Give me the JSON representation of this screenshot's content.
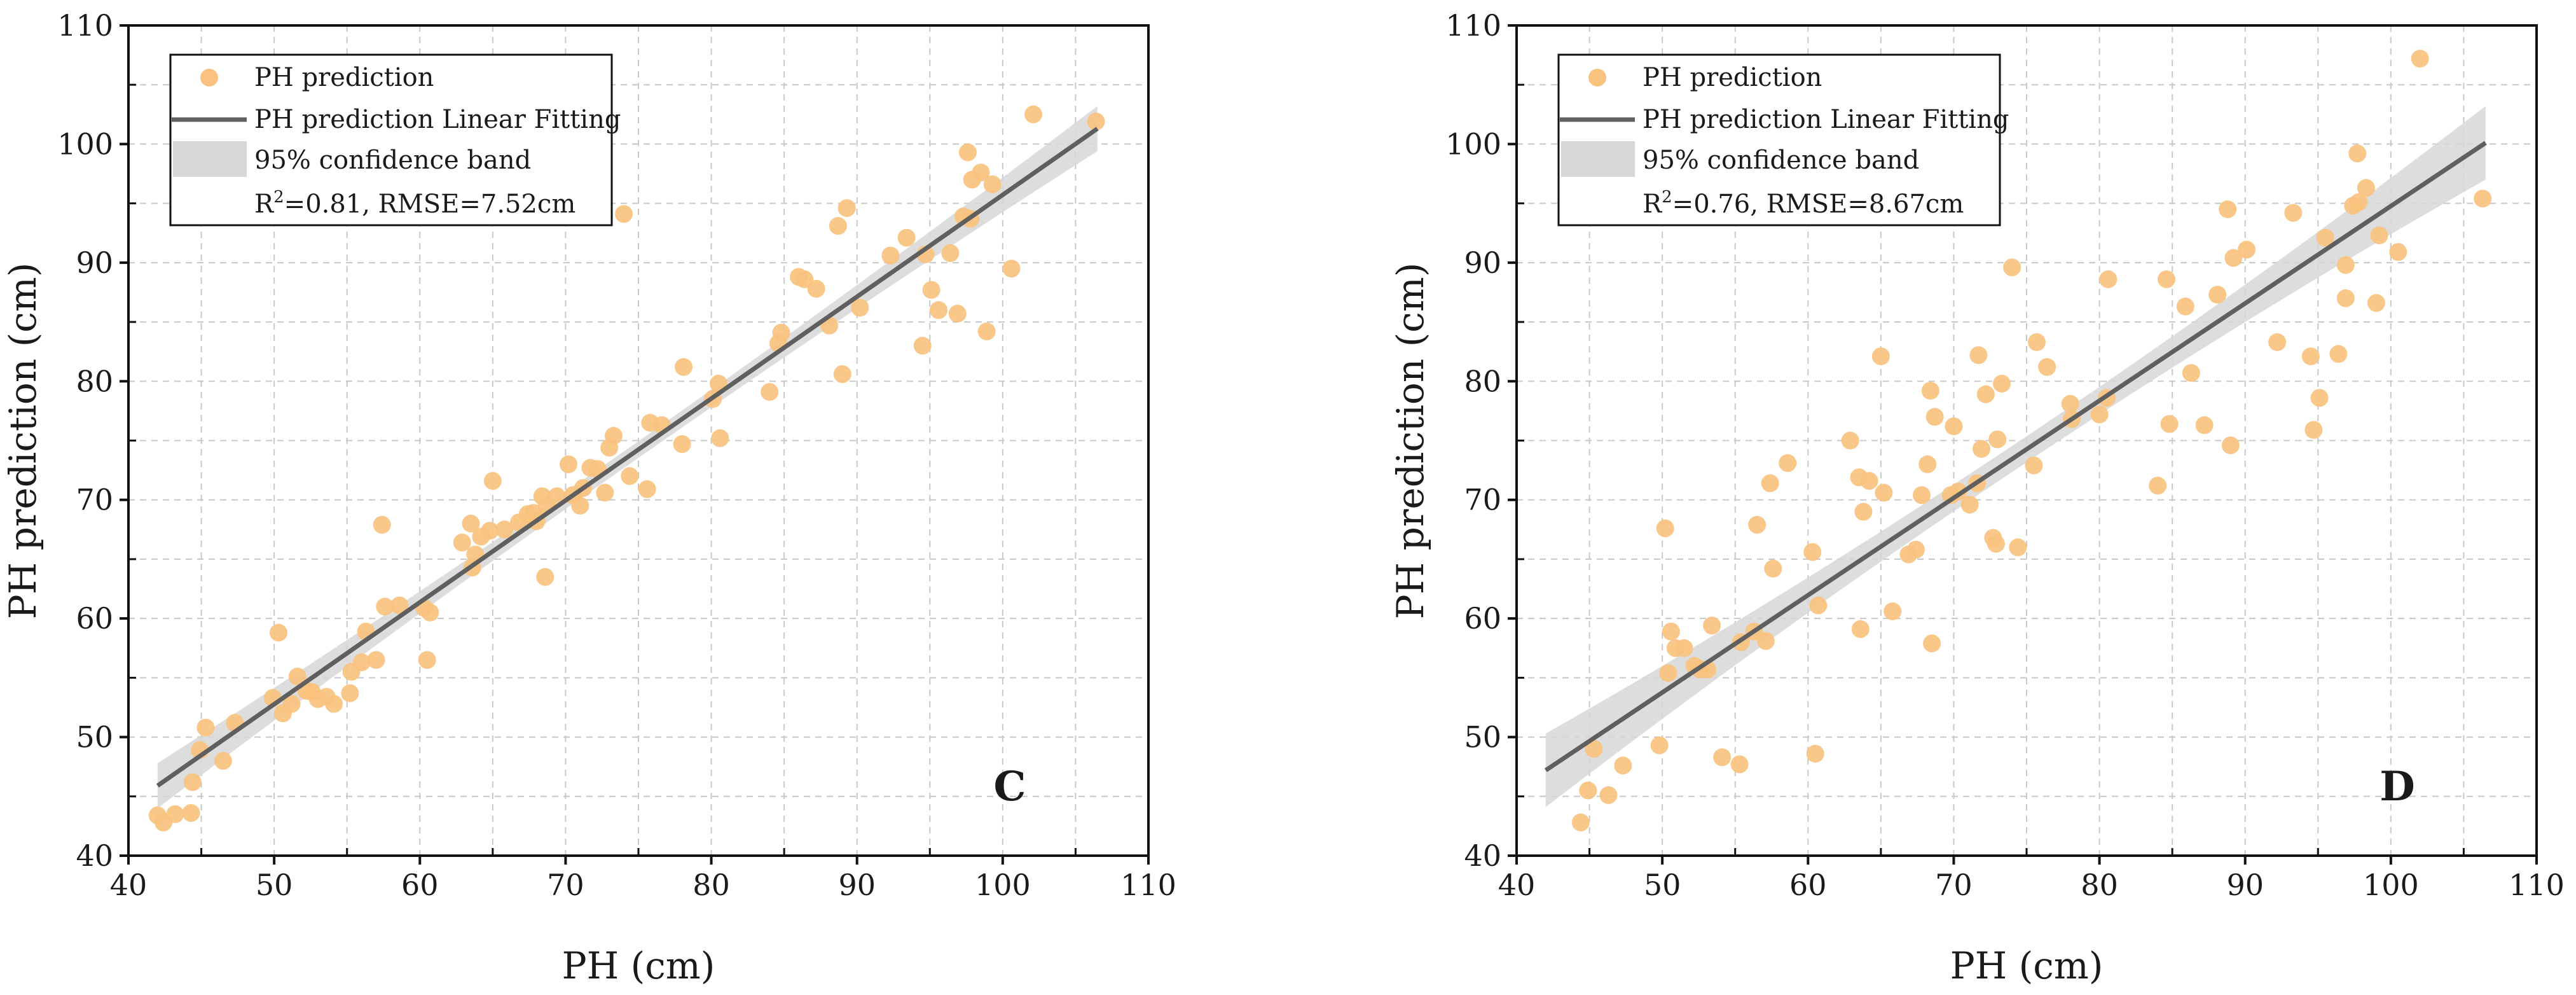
{
  "chart_data": [
    {
      "type": "scatter",
      "panel": "C",
      "xlabel": "PH (cm)",
      "ylabel": "PH prediction (cm)",
      "xlim": [
        40,
        110
      ],
      "ylim": [
        40,
        110
      ],
      "xticks": [
        40,
        50,
        60,
        70,
        80,
        90,
        100,
        110
      ],
      "yticks": [
        40,
        50,
        60,
        70,
        80,
        90,
        100,
        110
      ],
      "legend": {
        "placement": "top-left",
        "scatter_label": "PH prediction",
        "fit_label": "PH prediction Linear Fitting",
        "band_label": "95% confidence band",
        "stats_r2": "=0.81, RMSE=7.52cm"
      },
      "fit": {
        "x0": 42,
        "y0": 45.9,
        "x1": 106.5,
        "y1": 101.3
      },
      "band_half_width": {
        "ends": 1.9,
        "center": 0.7
      },
      "points": [
        [
          42,
          43.4
        ],
        [
          42.4,
          42.8
        ],
        [
          43.2,
          43.5
        ],
        [
          44.3,
          43.6
        ],
        [
          44.4,
          46.2
        ],
        [
          44.9,
          48.9
        ],
        [
          45.3,
          50.8
        ],
        [
          46.5,
          48
        ],
        [
          47.3,
          51.2
        ],
        [
          49.9,
          53.3
        ],
        [
          50.3,
          58.8
        ],
        [
          50.6,
          52
        ],
        [
          51.2,
          52.8
        ],
        [
          51.6,
          55.1
        ],
        [
          52.2,
          53.9
        ],
        [
          52.6,
          53.8
        ],
        [
          53,
          53.2
        ],
        [
          53.6,
          53.4
        ],
        [
          54.1,
          52.8
        ],
        [
          55.2,
          53.7
        ],
        [
          55.3,
          55.5
        ],
        [
          56,
          56.3
        ],
        [
          56.3,
          58.9
        ],
        [
          57,
          56.5
        ],
        [
          57.4,
          67.9
        ],
        [
          57.6,
          61
        ],
        [
          58.6,
          61.1
        ],
        [
          60.3,
          60.9
        ],
        [
          60.5,
          56.5
        ],
        [
          60.7,
          60.5
        ],
        [
          62.9,
          66.4
        ],
        [
          63.5,
          68
        ],
        [
          63.6,
          64.3
        ],
        [
          63.8,
          65.4
        ],
        [
          64.2,
          66.9
        ],
        [
          65,
          71.6
        ],
        [
          64.8,
          67.4
        ],
        [
          65.8,
          67.5
        ],
        [
          66.8,
          68.1
        ],
        [
          67.4,
          68.8
        ],
        [
          67.8,
          68.9
        ],
        [
          68,
          68.2
        ],
        [
          68.4,
          70.3
        ],
        [
          68.6,
          63.5
        ],
        [
          68.7,
          69.5
        ],
        [
          69.4,
          70.3
        ],
        [
          70.2,
          73
        ],
        [
          70.5,
          70.4
        ],
        [
          71,
          69.5
        ],
        [
          71.2,
          71
        ],
        [
          71.7,
          72.7
        ],
        [
          72.2,
          72.6
        ],
        [
          72.7,
          70.6
        ],
        [
          73,
          74.4
        ],
        [
          73.3,
          75.4
        ],
        [
          74,
          94.1
        ],
        [
          74.4,
          72
        ],
        [
          75.6,
          70.9
        ],
        [
          75.8,
          76.5
        ],
        [
          76.6,
          76.3
        ],
        [
          78,
          74.7
        ],
        [
          78.1,
          81.2
        ],
        [
          80.1,
          78.5
        ],
        [
          80.5,
          79.8
        ],
        [
          80.6,
          75.2
        ],
        [
          84,
          79.1
        ],
        [
          84.6,
          83.2
        ],
        [
          84.8,
          84.1
        ],
        [
          86,
          88.8
        ],
        [
          86.4,
          88.6
        ],
        [
          87.2,
          87.8
        ],
        [
          88.1,
          84.7
        ],
        [
          88.7,
          93.1
        ],
        [
          89,
          80.6
        ],
        [
          89.3,
          94.6
        ],
        [
          90.2,
          86.2
        ],
        [
          92.3,
          90.6
        ],
        [
          93.4,
          92.1
        ],
        [
          94.5,
          83
        ],
        [
          94.7,
          90.7
        ],
        [
          95.1,
          87.7
        ],
        [
          95.6,
          86
        ],
        [
          96.4,
          90.8
        ],
        [
          96.9,
          85.7
        ],
        [
          97.3,
          93.9
        ],
        [
          97.6,
          99.3
        ],
        [
          97.8,
          93.7
        ],
        [
          97.9,
          97
        ],
        [
          98.5,
          97.6
        ],
        [
          98.9,
          84.2
        ],
        [
          99.3,
          96.6
        ],
        [
          100.6,
          89.5
        ],
        [
          102.1,
          102.5
        ],
        [
          106.4,
          101.9
        ]
      ]
    },
    {
      "type": "scatter",
      "panel": "D",
      "xlabel": "PH (cm)",
      "ylabel": "PH prediction (cm)",
      "xlim": [
        40,
        110
      ],
      "ylim": [
        40,
        110
      ],
      "xticks": [
        40,
        50,
        60,
        70,
        80,
        90,
        100,
        110
      ],
      "yticks": [
        40,
        50,
        60,
        70,
        80,
        90,
        100,
        110
      ],
      "legend": {
        "placement": "top-left",
        "scatter_label": "PH prediction",
        "fit_label": "PH prediction Linear Fitting",
        "band_label": "95% confidence band",
        "stats_r2": "=0.76, RMSE=8.67cm"
      },
      "fit": {
        "x0": 42,
        "y0": 47.2,
        "x1": 106.5,
        "y1": 100.1
      },
      "band_half_width": {
        "ends": 3.1,
        "center": 1.1
      },
      "points": [
        [
          44.4,
          42.8
        ],
        [
          44.9,
          45.5
        ],
        [
          45.3,
          49
        ],
        [
          46.3,
          45.1
        ],
        [
          47.3,
          47.6
        ],
        [
          49.8,
          49.3
        ],
        [
          50.2,
          67.6
        ],
        [
          50.4,
          55.4
        ],
        [
          50.6,
          58.9
        ],
        [
          50.9,
          57.5
        ],
        [
          51.5,
          57.5
        ],
        [
          52.2,
          56
        ],
        [
          52.6,
          55.7
        ],
        [
          53.1,
          55.7
        ],
        [
          53.4,
          59.4
        ],
        [
          54.1,
          48.3
        ],
        [
          55.3,
          47.7
        ],
        [
          55.4,
          58
        ],
        [
          56.3,
          58.9
        ],
        [
          56.5,
          67.9
        ],
        [
          57.1,
          58.1
        ],
        [
          57.4,
          71.4
        ],
        [
          57.6,
          64.2
        ],
        [
          58.6,
          73.1
        ],
        [
          60.3,
          65.6
        ],
        [
          60.5,
          48.6
        ],
        [
          60.7,
          61.1
        ],
        [
          62.9,
          75
        ],
        [
          63.5,
          71.9
        ],
        [
          63.6,
          59.1
        ],
        [
          63.8,
          69
        ],
        [
          64.2,
          71.6
        ],
        [
          65,
          82.1
        ],
        [
          65.2,
          70.6
        ],
        [
          65.8,
          60.6
        ],
        [
          66.9,
          65.4
        ],
        [
          67.4,
          65.8
        ],
        [
          67.8,
          70.4
        ],
        [
          68.2,
          73
        ],
        [
          68.4,
          79.2
        ],
        [
          68.5,
          57.9
        ],
        [
          68.7,
          77
        ],
        [
          69.8,
          70.4
        ],
        [
          70,
          76.2
        ],
        [
          70.3,
          70.7
        ],
        [
          71.1,
          69.6
        ],
        [
          71.6,
          71.4
        ],
        [
          71.7,
          82.2
        ],
        [
          71.9,
          74.3
        ],
        [
          72.2,
          78.9
        ],
        [
          72.7,
          66.8
        ],
        [
          72.9,
          66.3
        ],
        [
          73,
          75.1
        ],
        [
          73.3,
          79.8
        ],
        [
          74,
          89.6
        ],
        [
          74.4,
          66
        ],
        [
          75.5,
          72.9
        ],
        [
          75.7,
          83.3
        ],
        [
          76.4,
          81.2
        ],
        [
          78,
          78.1
        ],
        [
          78.1,
          76.8
        ],
        [
          80,
          77.2
        ],
        [
          80.5,
          78.6
        ],
        [
          80.6,
          88.6
        ],
        [
          84,
          71.2
        ],
        [
          84.6,
          88.6
        ],
        [
          84.8,
          76.4
        ],
        [
          85.9,
          86.3
        ],
        [
          86.3,
          80.7
        ],
        [
          87.2,
          76.3
        ],
        [
          88.1,
          87.3
        ],
        [
          88.8,
          94.5
        ],
        [
          89,
          74.6
        ],
        [
          89.2,
          90.4
        ],
        [
          90.1,
          91.1
        ],
        [
          92.2,
          83.3
        ],
        [
          93.3,
          94.2
        ],
        [
          94.5,
          82.1
        ],
        [
          94.7,
          75.9
        ],
        [
          95.1,
          78.6
        ],
        [
          95.5,
          92.1
        ],
        [
          96.4,
          82.3
        ],
        [
          96.9,
          87
        ],
        [
          96.9,
          89.8
        ],
        [
          97.4,
          94.8
        ],
        [
          97.7,
          99.2
        ],
        [
          97.8,
          95.1
        ],
        [
          98.3,
          96.3
        ],
        [
          99,
          86.6
        ],
        [
          99.2,
          92.3
        ],
        [
          100.5,
          90.9
        ],
        [
          102,
          107.2
        ],
        [
          106.3,
          95.4
        ]
      ]
    }
  ]
}
